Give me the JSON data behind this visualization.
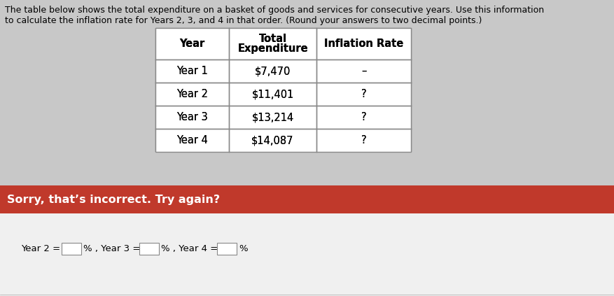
{
  "title_line1": "The table below shows the total expenditure on a basket of goods and services for consecutive years. Use this information",
  "title_line2": "to calculate the inflation rate for Years 2, 3, and 4 in that order. (Round your answers to two decimal points.)",
  "table_headers_line1": [
    "Year",
    "Total",
    "Inflation Rate"
  ],
  "table_headers_line2": [
    "",
    "Expenditure",
    ""
  ],
  "table_rows": [
    [
      "Year 1",
      "$7,470",
      "–"
    ],
    [
      "Year 2",
      "$11,401",
      "?"
    ],
    [
      "Year 3",
      "$13,214",
      "?"
    ],
    [
      "Year 4",
      "$14,087",
      "?"
    ]
  ],
  "error_banner_text": "Sorry, that’s incorrect. Try again?",
  "error_banner_color": "#c0392b",
  "bg_color": "#c8c8c8",
  "table_bg": "#ffffff",
  "header_bg": "#ffffff",
  "answer_area_bg": "#e8e8e8",
  "bottom_area_bg": "#f0f0f0",
  "title_fontsize": 9.0,
  "table_fontsize": 10.5,
  "error_fontsize": 11.5,
  "answer_fontsize": 9.5
}
